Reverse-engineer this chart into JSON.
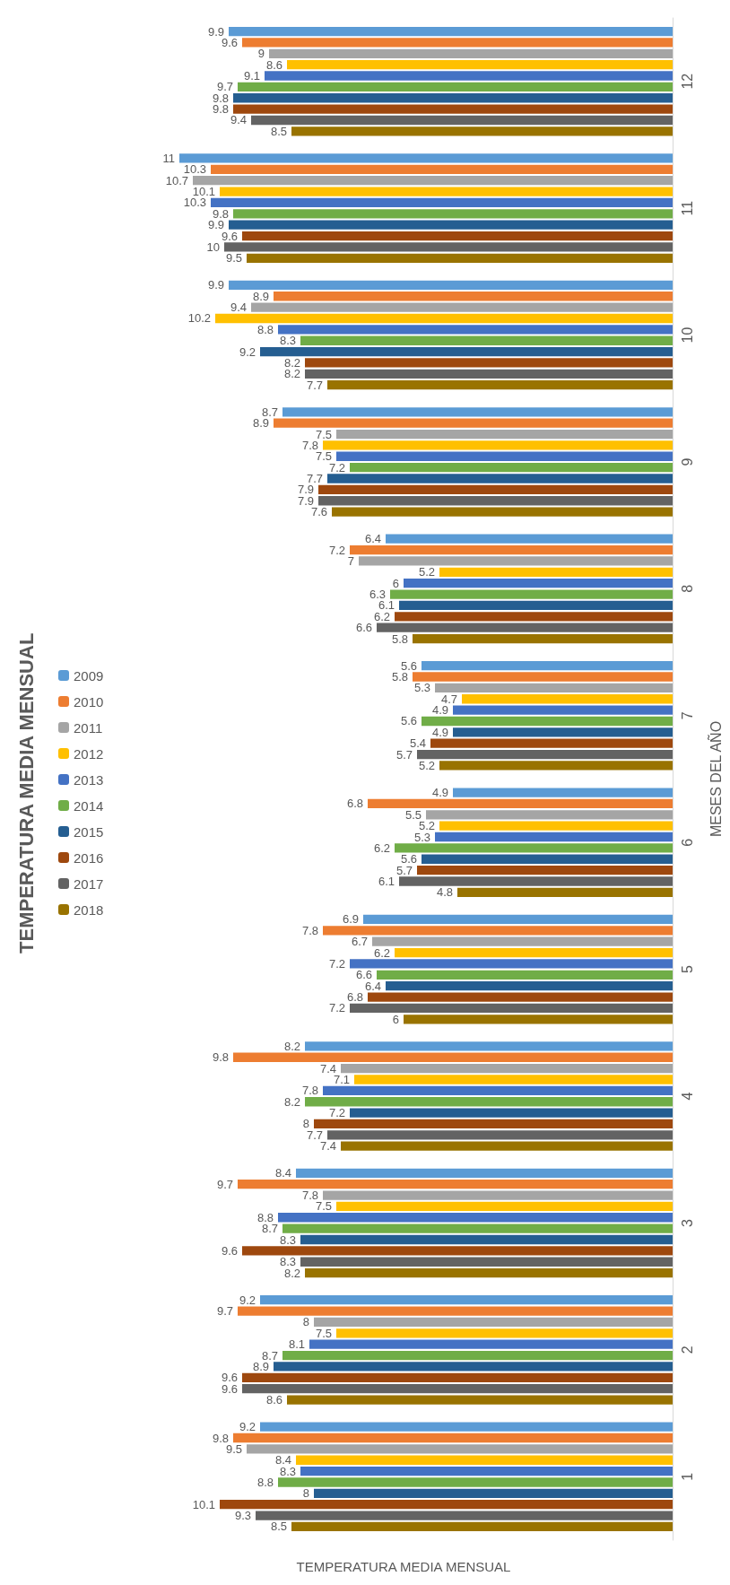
{
  "chart_data": {
    "type": "bar",
    "orientation": "horizontal",
    "title": "TEMPERATURA MEDIA MENSUAL",
    "xlabel": "TEMPERATURA MEDIA MENSUAL",
    "ylabel": "MESES DEL AÑO",
    "legend": "left",
    "data_labels": true,
    "categories": [
      "12",
      "11",
      "10",
      "9",
      "8",
      "7",
      "6",
      "5",
      "4",
      "3",
      "2",
      "1"
    ],
    "series": [
      {
        "name": "2009",
        "color": "#5b9bd5",
        "values": [
          9.9,
          11,
          9.9,
          8.7,
          6.4,
          5.6,
          4.9,
          6.9,
          8.2,
          8.4,
          9.2,
          9.2
        ]
      },
      {
        "name": "2010",
        "color": "#ed7d31",
        "values": [
          9.6,
          10.3,
          8.9,
          8.9,
          7.2,
          5.8,
          6.8,
          7.8,
          9.8,
          9.7,
          9.7,
          9.8
        ]
      },
      {
        "name": "2011",
        "color": "#a5a5a5",
        "values": [
          9,
          10.7,
          9.4,
          7.5,
          7,
          5.3,
          5.5,
          6.7,
          7.4,
          7.8,
          8,
          9.5
        ]
      },
      {
        "name": "2012",
        "color": "#ffc000",
        "values": [
          8.6,
          10.1,
          10.2,
          7.8,
          5.2,
          4.7,
          5.2,
          6.2,
          7.1,
          7.5,
          7.5,
          8.4
        ]
      },
      {
        "name": "2013",
        "color": "#4472c4",
        "values": [
          9.1,
          10.3,
          8.8,
          7.5,
          6,
          4.9,
          5.3,
          7.2,
          7.8,
          8.8,
          8.1,
          8.3
        ]
      },
      {
        "name": "2014",
        "color": "#70ad47",
        "values": [
          9.7,
          9.8,
          8.3,
          7.2,
          6.3,
          5.6,
          6.2,
          6.6,
          8.2,
          8.7,
          8.7,
          8.8
        ]
      },
      {
        "name": "2015",
        "color": "#255e91",
        "values": [
          9.8,
          9.9,
          9.2,
          7.7,
          6.1,
          4.9,
          5.6,
          6.4,
          7.2,
          8.3,
          8.9,
          8
        ]
      },
      {
        "name": "2016",
        "color": "#9e480e",
        "values": [
          9.8,
          9.6,
          8.2,
          7.9,
          6.2,
          5.4,
          5.7,
          6.8,
          8,
          9.6,
          9.6,
          10.1
        ]
      },
      {
        "name": "2017",
        "color": "#636363",
        "values": [
          9.4,
          10,
          8.2,
          7.9,
          6.6,
          5.7,
          6.1,
          7.2,
          7.7,
          8.3,
          9.6,
          9.3
        ]
      },
      {
        "name": "2018",
        "color": "#997300",
        "values": [
          8.5,
          9.5,
          7.7,
          7.6,
          5.8,
          5.2,
          4.8,
          6,
          7.4,
          8.2,
          8.6,
          8.5
        ]
      }
    ]
  }
}
